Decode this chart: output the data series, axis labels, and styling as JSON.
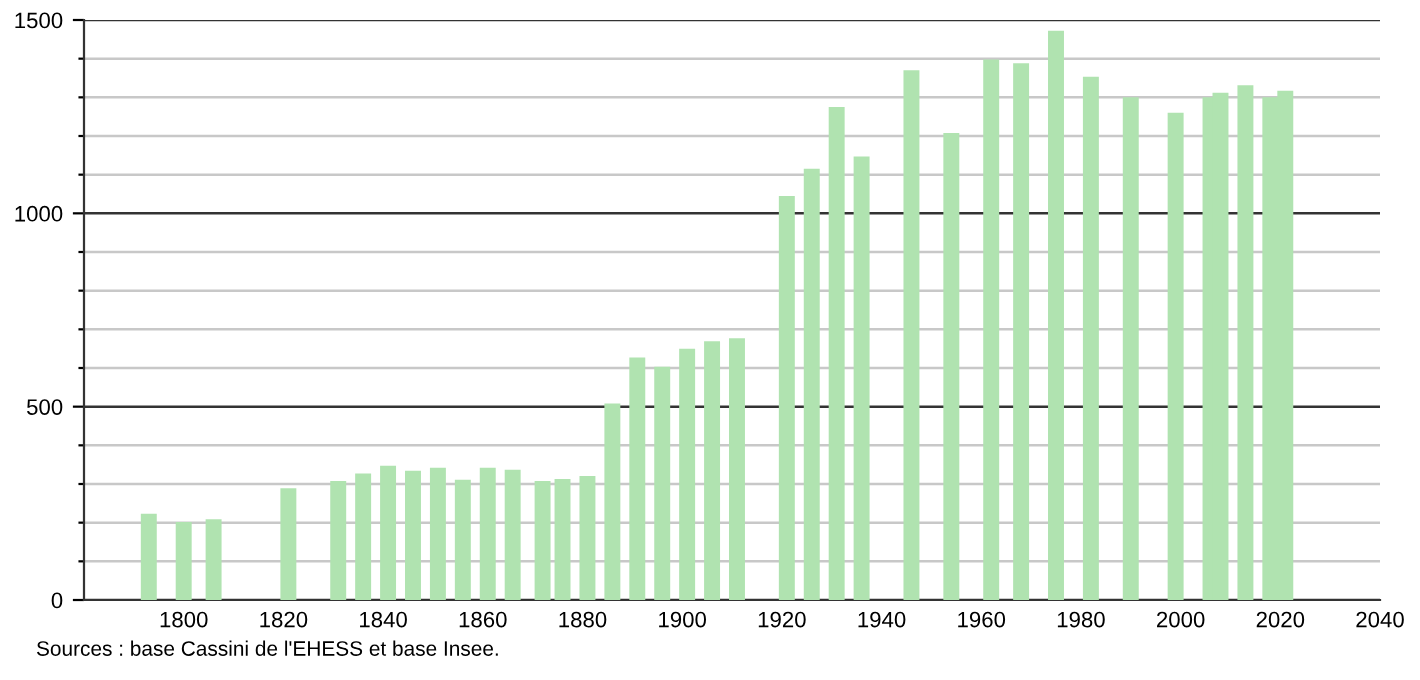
{
  "chart_data": {
    "type": "bar",
    "x": [
      1793,
      1800,
      1806,
      1821,
      1831,
      1836,
      1841,
      1846,
      1851,
      1856,
      1861,
      1866,
      1872,
      1876,
      1881,
      1886,
      1891,
      1896,
      1901,
      1906,
      1911,
      1921,
      1926,
      1931,
      1936,
      1946,
      1954,
      1962,
      1968,
      1975,
      1982,
      1990,
      1999,
      2006,
      2008,
      2013,
      2018,
      2021
    ],
    "values": [
      223,
      202,
      209,
      289,
      308,
      327,
      347,
      334,
      342,
      311,
      342,
      337,
      308,
      313,
      321,
      508,
      627,
      603,
      650,
      669,
      677,
      1045,
      1115,
      1275,
      1147,
      1370,
      1208,
      1398,
      1388,
      1472,
      1353,
      1300,
      1260,
      1300,
      1312,
      1331,
      1300,
      1317
    ],
    "color": "#b0e3b0",
    "xlim": [
      1780,
      2040
    ],
    "xticks": [
      1800,
      1820,
      1840,
      1860,
      1880,
      1900,
      1920,
      1940,
      1960,
      1980,
      2000,
      2020,
      2040
    ],
    "ylim": [
      0,
      1500
    ],
    "yticks": [
      0,
      {
        "value": 100,
        "label": null
      },
      {
        "value": 200,
        "label": null
      },
      {
        "value": 300,
        "label": null
      },
      {
        "value": 400,
        "label": null
      },
      500,
      {
        "value": 600,
        "label": null
      },
      {
        "value": 700,
        "label": null
      },
      {
        "value": 800,
        "label": null
      },
      {
        "value": 900,
        "label": null
      },
      1000,
      {
        "value": 1100,
        "label": null
      },
      {
        "value": 1200,
        "label": null
      },
      {
        "value": 1300,
        "label": null
      },
      {
        "value": 1400,
        "label": null
      },
      1500
    ],
    "grid": "y",
    "annotations": [
      "Sources : base Cassini de l'EHESS et base Insee."
    ]
  }
}
